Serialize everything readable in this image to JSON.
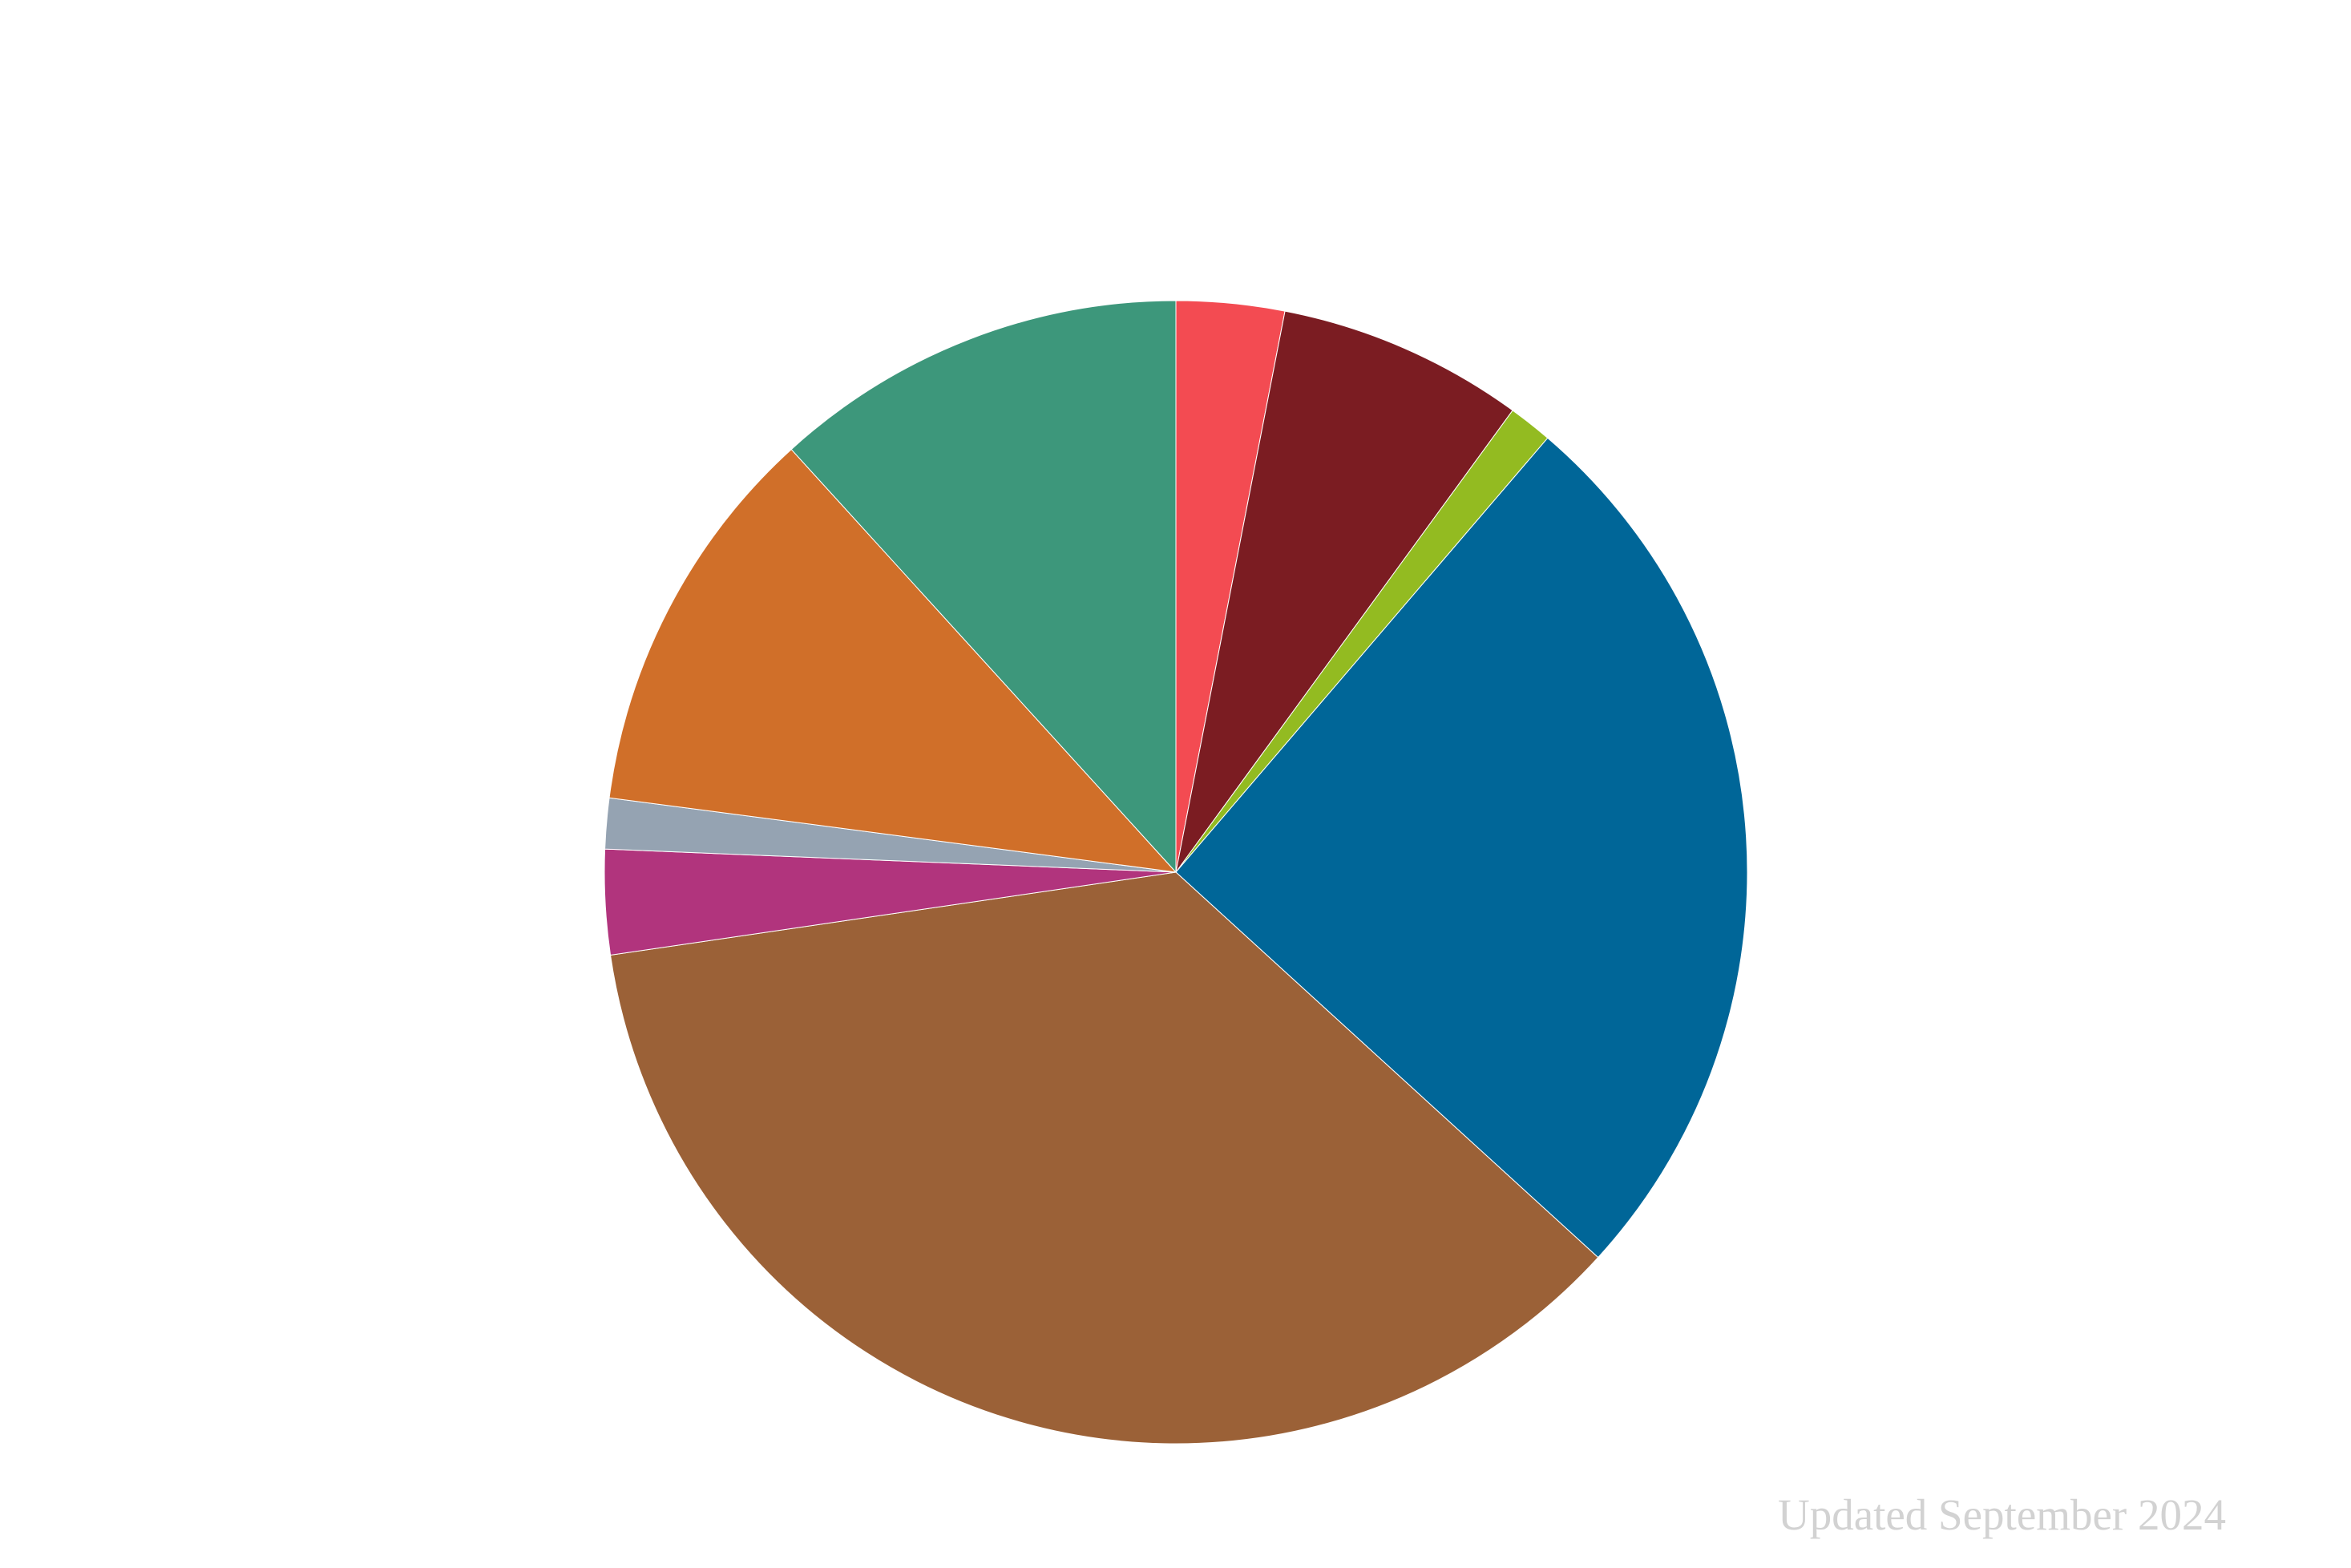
{
  "chart_data": {
    "type": "pie",
    "start_angle_deg": 0,
    "direction": "clockwise",
    "slices": [
      {
        "value": 3.2,
        "color": "#f34b52"
      },
      {
        "value": 7.3,
        "color": "#7b1c22"
      },
      {
        "value": 1.3,
        "color": "#93bb21"
      },
      {
        "value": 26.7,
        "color": "#006698"
      },
      {
        "value": 37.6,
        "color": "#9b6137"
      },
      {
        "value": 3.1,
        "color": "#b1347d"
      },
      {
        "value": 1.5,
        "color": "#95a3b2"
      },
      {
        "value": 11.7,
        "color": "#d06f29"
      },
      {
        "value": 12.3,
        "color": "#3d977b"
      }
    ],
    "title": "",
    "legend": "none",
    "annotation": "Updated September 2024"
  }
}
